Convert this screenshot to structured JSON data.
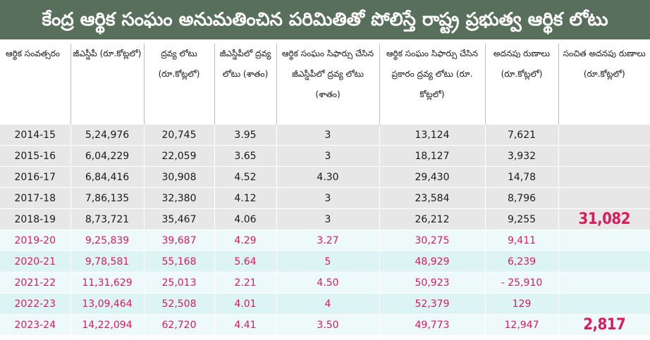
{
  "title": "కేంద్ర ఆర్థిక సంఘం అనుమతించిన పరిమితితో పోలిస్తే రాష్ట్ర ప్రభుత్వ ఆర్థిక లోటు",
  "columns": [
    "ఆర్థిక సంవత్సరం",
    "జీఎస్డీపీ (రూ.కోట్లలో)",
    "ద్రవ్య లోటు (రూ.కోట్లలో)",
    "జీఎస్డీపీలో ద్రవ్య లోటు (శాతం)",
    "ఆర్థిక సంఘం సిఫార్సు చేసిన జీఎస్డీపీలో ద్రవ్య లోటు (శాతం)",
    "ఆర్థిక సంఘం సిఫార్సు చేసిన ప్రకారం ద్రవ్య లోటు (రూ. కోట్లలో)",
    "అదనపు రుణాలు (రూ.కోట్లలో)",
    "సంచిత అదనపు రుణాలు (రూ.కోట్లలో)"
  ],
  "rows": [
    {
      "year": "2014-15",
      "gsdp": "5,24,976",
      "deficit": "20,745",
      "pct": "3.95",
      "fc_pct": "3",
      "fc_deficit": "13,124",
      "extra": "7,621",
      "cumulative": ""
    },
    {
      "year": "2015-16",
      "gsdp": "6,04,229",
      "deficit": "22,059",
      "pct": "3.65",
      "fc_pct": "3",
      "fc_deficit": "18,127",
      "extra": "3,932",
      "cumulative": ""
    },
    {
      "year": "2016-17",
      "gsdp": "6,84,416",
      "deficit": "30,908",
      "pct": "4.52",
      "fc_pct": "4.30",
      "fc_deficit": "29,430",
      "extra": "14,78",
      "cumulative": ""
    },
    {
      "year": "2017-18",
      "gsdp": "7,86,135",
      "deficit": "32,380",
      "pct": "4.12",
      "fc_pct": "3",
      "fc_deficit": "23,584",
      "extra": "8,796",
      "cumulative": ""
    },
    {
      "year": "2018-19",
      "gsdp": "8,73,721",
      "deficit": "35,467",
      "pct": "4.06",
      "fc_pct": "3",
      "fc_deficit": "26,212",
      "extra": "9,255",
      "cumulative": "31,082"
    },
    {
      "year": "2019-20",
      "gsdp": "9,25,839",
      "deficit": "39,687",
      "pct": "4.29",
      "fc_pct": "3.27",
      "fc_deficit": "30,275",
      "extra": "9,411",
      "cumulative": ""
    },
    {
      "year": "2020-21",
      "gsdp": "9,78,581",
      "deficit": "55,168",
      "pct": "5.64",
      "fc_pct": "5",
      "fc_deficit": "48,929",
      "extra": "6,239",
      "cumulative": ""
    },
    {
      "year": "2021-22",
      "gsdp": "11,31,629",
      "deficit": "25,013",
      "pct": "2.21",
      "fc_pct": "4.50",
      "fc_deficit": "50,923",
      "extra": "- 25,910",
      "cumulative": ""
    },
    {
      "year": "2022-23",
      "gsdp": "13,09,464",
      "deficit": "52,508",
      "pct": "4.01",
      "fc_pct": "4",
      "fc_deficit": "52,379",
      "extra": "129",
      "cumulative": ""
    },
    {
      "year": "2023-24",
      "gsdp": "14,22,094",
      "deficit": "62,720",
      "pct": "4.41",
      "fc_pct": "3.50",
      "fc_deficit": "49,773",
      "extra": "12,947",
      "cumulative": "2,817"
    }
  ],
  "colors": {
    "title_bg": "#586f5c",
    "past_row_bg": "#e7e7e7",
    "recent_row_bg": "#ddf4f4",
    "highlight_text": "#d81c5c"
  }
}
